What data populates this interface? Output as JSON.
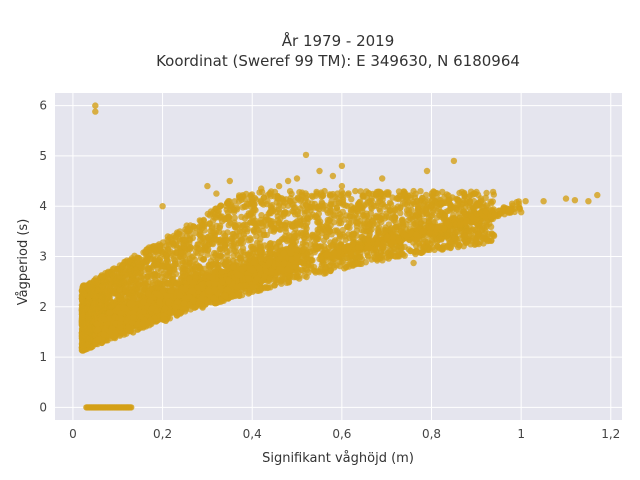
{
  "chart_data": {
    "type": "scatter",
    "title": "År 1979 - 2019",
    "subtitle": "Koordinat (Sweref 99 TM): E 349630, N 6180964",
    "xlabel": "Signifikant våghöjd (m)",
    "ylabel": "Vågperiod (s)",
    "xlim": [
      -0.04,
      1.225
    ],
    "ylim": [
      -0.25,
      6.25
    ],
    "x_ticks": [
      0,
      0.2,
      0.4,
      0.6,
      0.8,
      1,
      1.2
    ],
    "x_tick_labels": [
      "0",
      "0,2",
      "0,4",
      "0,6",
      "0,8",
      "1",
      "1,2"
    ],
    "y_ticks": [
      0,
      1,
      2,
      3,
      4,
      5,
      6
    ],
    "y_tick_labels": [
      "0",
      "1",
      "2",
      "3",
      "4",
      "5",
      "6"
    ],
    "grid": true,
    "legend": "none",
    "color": "#D4A017",
    "background": "#E5E5EE",
    "outliers": [
      {
        "x": 0.05,
        "y": 6.0
      },
      {
        "x": 0.05,
        "y": 5.88
      },
      {
        "x": 0.52,
        "y": 5.02
      },
      {
        "x": 0.85,
        "y": 4.9
      },
      {
        "x": 0.42,
        "y": 4.35
      },
      {
        "x": 0.46,
        "y": 4.4
      },
      {
        "x": 0.48,
        "y": 4.5
      },
      {
        "x": 0.5,
        "y": 4.55
      },
      {
        "x": 0.55,
        "y": 4.7
      },
      {
        "x": 0.58,
        "y": 4.6
      },
      {
        "x": 0.6,
        "y": 4.4
      },
      {
        "x": 0.63,
        "y": 4.3
      },
      {
        "x": 0.76,
        "y": 4.3
      },
      {
        "x": 0.77,
        "y": 4.0
      },
      {
        "x": 0.79,
        "y": 4.7
      },
      {
        "x": 0.69,
        "y": 4.55
      },
      {
        "x": 0.59,
        "y": 4.25
      },
      {
        "x": 0.6,
        "y": 4.8
      },
      {
        "x": 0.3,
        "y": 4.4
      },
      {
        "x": 0.32,
        "y": 4.25
      },
      {
        "x": 0.2,
        "y": 4.0
      },
      {
        "x": 0.35,
        "y": 4.5
      },
      {
        "x": 0.78,
        "y": 3.25
      },
      {
        "x": 0.76,
        "y": 2.87
      },
      {
        "x": 0.72,
        "y": 3.0
      },
      {
        "x": 0.68,
        "y": 2.95
      },
      {
        "x": 0.92,
        "y": 3.9
      },
      {
        "x": 0.98,
        "y": 4.05
      },
      {
        "x": 1.01,
        "y": 4.1
      },
      {
        "x": 1.05,
        "y": 4.1
      },
      {
        "x": 1.1,
        "y": 4.15
      },
      {
        "x": 1.12,
        "y": 4.12
      },
      {
        "x": 1.15,
        "y": 4.1
      },
      {
        "x": 1.17,
        "y": 4.22
      },
      {
        "x": 1.0,
        "y": 3.88
      },
      {
        "x": 0.99,
        "y": 4.08
      },
      {
        "x": 0.69,
        "y": 3.2
      },
      {
        "x": 0.7,
        "y": 2.98
      }
    ],
    "zero_period_points": {
      "x_from": 0.03,
      "x_to": 0.13,
      "y": 0
    }
  }
}
